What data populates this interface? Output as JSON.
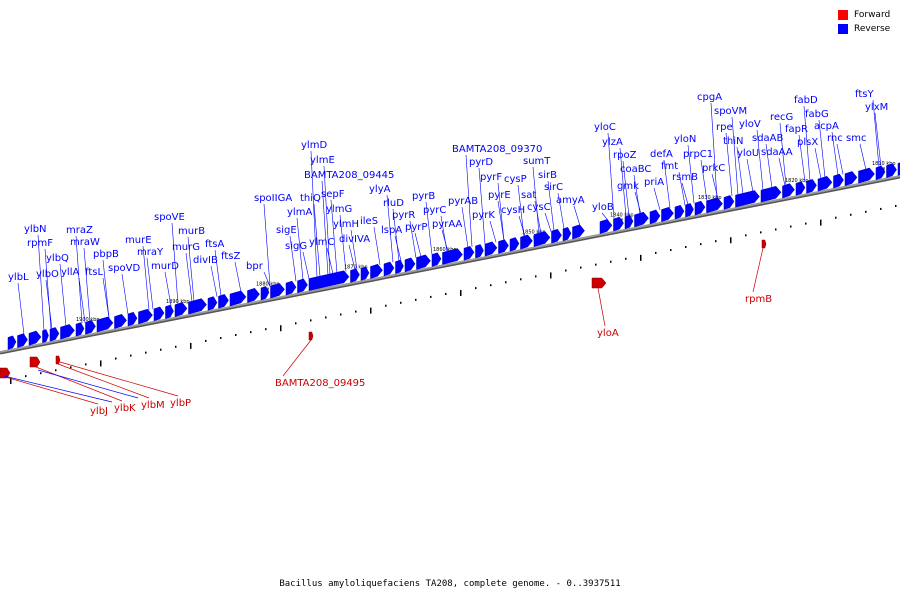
{
  "caption": "Bacillus amyloliquefaciens TA208, complete genome. - 0..3937511",
  "legend": [
    {
      "label": "Forward",
      "color": "#ff0000"
    },
    {
      "label": "Reverse",
      "color": "#0000ff"
    }
  ],
  "colors": {
    "forward": "#cc0000",
    "reverse": "#0000ff",
    "backbone": "#9a9a9a"
  },
  "kbp_ticks": [
    "1900 kbp",
    "1890 kbp",
    "1880 kbp",
    "1870 kbp",
    "1860 kbp",
    "1850 kbp",
    "1840 kbp",
    "1830 kbp",
    "1820 kbp",
    "1810 kbp"
  ],
  "reverse_labels": [
    "ylbL",
    "ylbN",
    "rpmF",
    "ylbO",
    "ylbQ",
    "yllA",
    "mraZ",
    "mraW",
    "ftsL",
    "pbpB",
    "spoVD",
    "murE",
    "mraY",
    "murD",
    "spoVE",
    "murB",
    "murG",
    "divIB",
    "ftsA",
    "ftsZ",
    "bpr",
    "spoIIGA",
    "sigE",
    "sigG",
    "ylmA",
    "thiQ",
    "ylmC",
    "ylmD",
    "ylmE",
    "BAMTA208_09445",
    "sepF",
    "ylmG",
    "ylmH",
    "divIVA",
    "ileS",
    "ylyA",
    "rluD",
    "lspA",
    "pyrR",
    "pyrP",
    "pyrB",
    "pyrC",
    "pyrAA",
    "pyrAB",
    "pyrK",
    "pyrD",
    "BAMTA208_09370",
    "pyrF",
    "pyrE",
    "cysP",
    "cysH",
    "sumT",
    "sat",
    "cysC",
    "sirB",
    "sirC",
    "amyA",
    "yloB",
    "yloC",
    "ylzA",
    "rpoZ",
    "coaBC",
    "gmk",
    "priA",
    "defA",
    "fmt",
    "rsmB",
    "yloN",
    "prpC1",
    "prkC",
    "cpgA",
    "spoVM",
    "rpe",
    "thiN",
    "yloV",
    "yloU",
    "sdaAB",
    "sdaAA",
    "recG",
    "fapR",
    "plsX",
    "fabD",
    "fabG",
    "acpA",
    "rnc",
    "smc",
    "ftsY",
    "ylxM"
  ],
  "forward_labels": [
    "ylbJ",
    "ylbK",
    "ylbM",
    "ylbP",
    "BAMTA208_09495",
    "yloA",
    "rpmB"
  ]
}
